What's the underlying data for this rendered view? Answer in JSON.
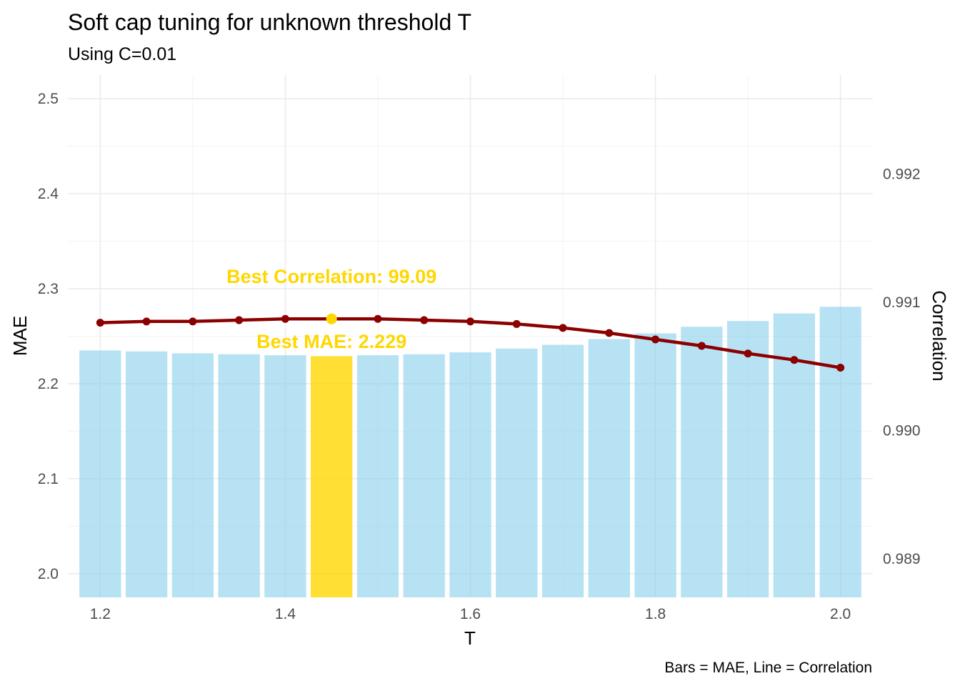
{
  "chart_data": {
    "type": "bar",
    "title": "Soft cap tuning for unknown threshold T",
    "subtitle": "Using C=0.01",
    "xlabel": "T",
    "ylabel": "MAE",
    "y2label": "Correlation",
    "caption": "Bars = MAE, Line = Correlation",
    "x": [
      1.2,
      1.25,
      1.3,
      1.35,
      1.4,
      1.45,
      1.5,
      1.55,
      1.6,
      1.65,
      1.7,
      1.75,
      1.8,
      1.85,
      1.9,
      1.95,
      2.0
    ],
    "series": [
      {
        "name": "MAE",
        "type": "bar",
        "axis": "left",
        "values": [
          2.235,
          2.234,
          2.232,
          2.231,
          2.23,
          2.229,
          2.23,
          2.231,
          2.233,
          2.237,
          2.241,
          2.247,
          2.253,
          2.26,
          2.266,
          2.274,
          2.281
        ]
      },
      {
        "name": "Correlation",
        "type": "line",
        "axis": "right",
        "values": [
          0.99084,
          0.99085,
          0.99085,
          0.99086,
          0.99087,
          0.99087,
          0.99087,
          0.99086,
          0.99085,
          0.99083,
          0.9908,
          0.99076,
          0.99071,
          0.99066,
          0.9906,
          0.99055,
          0.99049
        ]
      }
    ],
    "highlight": {
      "best_mae_x": 1.45,
      "best_mae_label": "Best MAE: 2.229",
      "best_corr_x": 1.45,
      "best_corr_label": "Best Correlation: 99.09"
    },
    "xlim": [
      1.165,
      2.035
    ],
    "xticks": [
      1.2,
      1.4,
      1.6,
      1.8,
      2.0
    ],
    "xtick_labels": [
      "1.2",
      "1.4",
      "1.6",
      "1.8",
      "2.0"
    ],
    "ylim": [
      1.975,
      2.525
    ],
    "yticks": [
      2.0,
      2.1,
      2.2,
      2.3,
      2.4,
      2.5
    ],
    "ytick_labels": [
      "2.0",
      "2.1",
      "2.2",
      "2.3",
      "2.4",
      "2.5"
    ],
    "y2lim": [
      0.9887,
      0.99277
    ],
    "y2ticks": [
      0.989,
      0.99,
      0.991,
      0.992
    ],
    "y2tick_labels": [
      "0.989",
      "0.990",
      "0.991",
      "0.992"
    ],
    "grid": true,
    "colors": {
      "bar": "#87CEEB",
      "bar_best": "#FFD700",
      "line": "#8B0000",
      "best_point": "#FFD700",
      "annotation": "#FFD700",
      "grid_major": "#ebebeb",
      "grid_minor": "#f3f3f3"
    }
  }
}
